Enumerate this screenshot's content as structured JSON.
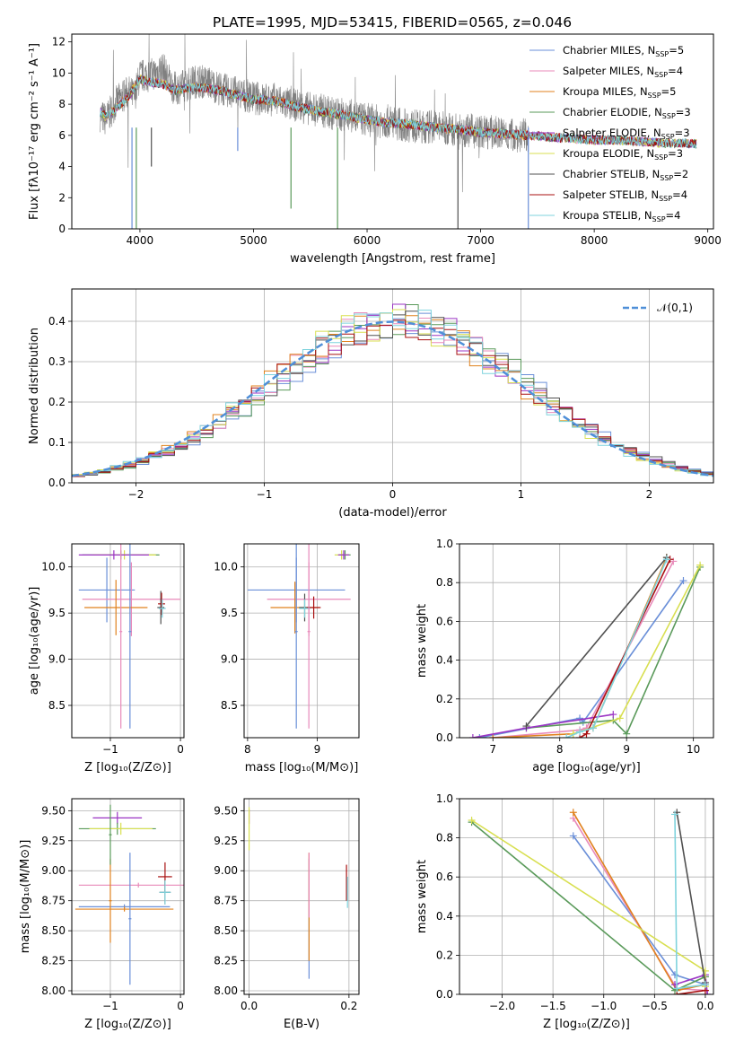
{
  "figure": {
    "title": "PLATE=1995, MJD=53415, FIBERID=0565, z=0.046"
  },
  "colors": [
    "#6a8fd8",
    "#e88aba",
    "#e0821e",
    "#5a9a5a",
    "#9b35c4",
    "#d8df50",
    "#505050",
    "#a81010",
    "#7fd3dd"
  ],
  "chart_data": [
    {
      "id": "spectrum",
      "type": "line",
      "xlabel": "wavelength [Angstrom, rest frame]",
      "ylabel": "Flux [fλ10⁻¹⁷ erg cm⁻² s⁻¹ A⁻¹]",
      "xlim": [
        3400,
        9050
      ],
      "ylim": [
        0,
        12.5
      ],
      "xticks": [
        4000,
        5000,
        6000,
        7000,
        8000,
        9000
      ],
      "yticks": [
        0,
        2,
        4,
        6,
        8,
        10,
        12
      ],
      "legend_position": "top-right",
      "observed_flux": {
        "color": "#808080",
        "x": [
          3650,
          3700,
          3800,
          3900,
          3950,
          4000,
          4100,
          4200,
          4300,
          4400,
          4500,
          4600,
          4700,
          4800,
          4900,
          5000,
          5100,
          5200,
          5300,
          5400,
          5500,
          5600,
          5700,
          5800,
          5900,
          6000,
          6100,
          6200,
          6300,
          6400,
          6500,
          6600,
          6700,
          6800,
          6900,
          7000,
          7100,
          7200,
          7300,
          7400
        ],
        "y": [
          7.3,
          7.0,
          8.2,
          8.8,
          8.5,
          9.8,
          9.9,
          10.3,
          9.0,
          9.2,
          9.5,
          9.4,
          9.0,
          8.8,
          8.6,
          8.4,
          8.3,
          8.3,
          8.0,
          7.9,
          7.7,
          7.6,
          7.4,
          7.3,
          7.2,
          7.0,
          6.9,
          6.9,
          6.7,
          6.6,
          6.5,
          6.6,
          6.4,
          6.4,
          6.3,
          6.2,
          6.2,
          6.1,
          6.0,
          6.0
        ]
      },
      "series": [
        {
          "name": "Chabrier MILES, N_SSP=5",
          "color": "#6a8fd8"
        },
        {
          "name": "Salpeter MILES, N_SSP=4",
          "color": "#e88aba"
        },
        {
          "name": "Kroupa MILES, N_SSP=5",
          "color": "#e0821e"
        },
        {
          "name": "Chabrier ELODIE, N_SSP=3",
          "color": "#5a9a5a"
        },
        {
          "name": "Salpeter ELODIE, N_SSP=3",
          "color": "#9b35c4"
        },
        {
          "name": "Kroupa ELODIE, N_SSP=3",
          "color": "#d8df50"
        },
        {
          "name": "Chabrier STELIB, N_SSP=2",
          "color": "#505050"
        },
        {
          "name": "Salpeter STELIB, N_SSP=4",
          "color": "#a81010"
        },
        {
          "name": "Kroupa STELIB, N_SSP=4",
          "color": "#7fd3dd"
        }
      ],
      "model_flux": {
        "x": [
          3650,
          3700,
          3800,
          3900,
          4000,
          4100,
          4200,
          4300,
          4400,
          4500,
          4600,
          4700,
          4800,
          4900,
          5000,
          5200,
          5400,
          5600,
          5800,
          6000,
          6200,
          6400,
          6600,
          6800,
          7000,
          7200,
          7400,
          7600,
          7800,
          8000,
          8200,
          8400,
          8600,
          8800,
          9000
        ],
        "y": [
          7.5,
          7.2,
          7.8,
          8.5,
          9.6,
          9.4,
          9.3,
          8.9,
          9.0,
          9.1,
          9.0,
          8.9,
          8.7,
          8.5,
          8.3,
          8.2,
          7.8,
          7.5,
          7.3,
          7.0,
          6.8,
          6.7,
          6.5,
          6.4,
          6.2,
          6.1,
          6.0,
          5.9,
          5.8,
          5.7,
          5.7,
          5.6,
          5.5,
          5.5,
          5.4
        ]
      }
    },
    {
      "id": "residuals",
      "type": "line",
      "xlabel": "(data-model)/error",
      "ylabel": "Normed distribution",
      "xlim": [
        -2.5,
        2.5
      ],
      "ylim": [
        0,
        0.48
      ],
      "xticks": [
        -2,
        -1,
        0,
        1,
        2
      ],
      "yticks": [
        0.0,
        0.1,
        0.2,
        0.3,
        0.4
      ],
      "reference_curve": {
        "name": "𝒩(0,1)",
        "mean": 0,
        "sigma": 1,
        "color": "#4f8fd8"
      },
      "histogram_bin_width": 0.1
    },
    {
      "id": "age_vs_Z",
      "type": "scatter",
      "xlabel": "Z [log₁₀(Z/Z⊙)]",
      "ylabel": "age  [log₁₀(age/yr)]",
      "xlim": [
        -1.55,
        0.05
      ],
      "ylim": [
        8.15,
        10.25
      ],
      "xticks": [
        -1,
        0
      ],
      "yticks": [
        8.5,
        9.0,
        9.5,
        10.0
      ],
      "points": [
        {
          "x": -0.85,
          "y": 10.13,
          "xerr": 0.55,
          "yerr": 0.05,
          "color": "#5a9a5a"
        },
        {
          "x": -0.8,
          "y": 10.13,
          "xerr": 0.45,
          "yerr": 0.05,
          "color": "#d8df50"
        },
        {
          "x": -0.95,
          "y": 10.13,
          "xerr": 0.5,
          "yerr": 0.05,
          "color": "#9b35c4"
        },
        {
          "x": -1.05,
          "y": 9.75,
          "xerr": 0.4,
          "yerr": 0.35,
          "color": "#6a8fd8"
        },
        {
          "x": -0.7,
          "y": 9.65,
          "xerr": 0.7,
          "yerr": 0.4,
          "color": "#e88aba"
        },
        {
          "x": -0.92,
          "y": 9.56,
          "xerr": 0.45,
          "yerr": 0.3,
          "color": "#e0821e"
        },
        {
          "x": -0.28,
          "y": 9.56,
          "xerr": 0.05,
          "yerr": 0.18,
          "color": "#505050"
        },
        {
          "x": -0.27,
          "y": 9.6,
          "xerr": 0.05,
          "yerr": 0.12,
          "color": "#a81010"
        },
        {
          "x": -0.26,
          "y": 9.55,
          "xerr": 0.05,
          "yerr": 0.1,
          "color": "#7fd3dd"
        },
        {
          "x": -0.72,
          "y": 9.3,
          "xerr": 0.02,
          "yerr": 1.05,
          "color": "#6a8fd8"
        },
        {
          "x": -0.85,
          "y": 9.3,
          "xerr": 0.02,
          "yerr": 1.05,
          "color": "#e88aba"
        }
      ]
    },
    {
      "id": "age_vs_mass",
      "type": "scatter",
      "xlabel": "mass [log₁₀(M/M⊙)]",
      "ylabel": "",
      "xlim": [
        7.95,
        9.6
      ],
      "ylim": [
        8.15,
        10.25
      ],
      "xticks": [
        8,
        9
      ],
      "yticks": [
        8.5,
        9.0,
        9.5,
        10.0
      ],
      "points": [
        {
          "x": 9.4,
          "y": 10.13,
          "xerr": 0.08,
          "yerr": 0.05,
          "color": "#5a9a5a"
        },
        {
          "x": 9.35,
          "y": 10.13,
          "xerr": 0.1,
          "yerr": 0.05,
          "color": "#d8df50"
        },
        {
          "x": 9.38,
          "y": 10.13,
          "xerr": 0.08,
          "yerr": 0.05,
          "color": "#9b35c4"
        },
        {
          "x": 8.7,
          "y": 9.75,
          "xerr": 0.7,
          "yerr": 0.35,
          "color": "#6a8fd8"
        },
        {
          "x": 8.88,
          "y": 9.65,
          "xerr": 0.6,
          "yerr": 0.4,
          "color": "#e88aba"
        },
        {
          "x": 8.68,
          "y": 9.56,
          "xerr": 0.35,
          "yerr": 0.28,
          "color": "#e0821e"
        },
        {
          "x": 8.82,
          "y": 9.56,
          "xerr": 0.08,
          "yerr": 0.15,
          "color": "#505050"
        },
        {
          "x": 8.95,
          "y": 9.56,
          "xerr": 0.1,
          "yerr": 0.12,
          "color": "#a81010"
        },
        {
          "x": 8.82,
          "y": 9.55,
          "xerr": 0.08,
          "yerr": 0.1,
          "color": "#7fd3dd"
        },
        {
          "x": 8.7,
          "y": 9.3,
          "xerr": 0.02,
          "yerr": 1.05,
          "color": "#6a8fd8"
        },
        {
          "x": 8.88,
          "y": 9.3,
          "xerr": 0.02,
          "yerr": 1.05,
          "color": "#e88aba"
        }
      ]
    },
    {
      "id": "weight_vs_age",
      "type": "line",
      "xlabel": "age  [log₁₀(age/yr)]",
      "ylabel": "mass weight",
      "xlim": [
        6.5,
        10.3
      ],
      "ylim": [
        0,
        1.0
      ],
      "xticks": [
        7,
        8,
        9,
        10
      ],
      "yticks": [
        0.0,
        0.2,
        0.4,
        0.6,
        0.8,
        1.0
      ],
      "series": [
        {
          "color": "#6a8fd8",
          "x": [
            6.8,
            8.3,
            8.35,
            9.85
          ],
          "y": [
            0.0,
            0.1,
            0.08,
            0.81
          ]
        },
        {
          "color": "#e88aba",
          "x": [
            7.0,
            8.3,
            8.4,
            9.7
          ],
          "y": [
            0.0,
            0.04,
            0.05,
            0.91
          ]
        },
        {
          "color": "#e0821e",
          "x": [
            7.0,
            8.2,
            8.5,
            9.6
          ],
          "y": [
            0.0,
            0.02,
            0.05,
            0.93
          ]
        },
        {
          "color": "#5a9a5a",
          "x": [
            7.5,
            8.8,
            9.0,
            10.1
          ],
          "y": [
            0.05,
            0.09,
            0.02,
            0.88
          ]
        },
        {
          "color": "#9b35c4",
          "x": [
            6.7,
            7.5,
            8.8
          ],
          "y": [
            0.0,
            0.05,
            0.12
          ]
        },
        {
          "color": "#d8df50",
          "x": [
            8.2,
            8.9,
            10.1
          ],
          "y": [
            0.02,
            0.1,
            0.89
          ]
        },
        {
          "color": "#505050",
          "x": [
            7.5,
            9.6
          ],
          "y": [
            0.06,
            0.93
          ]
        },
        {
          "color": "#a81010",
          "x": [
            8.3,
            8.4,
            9.65
          ],
          "y": [
            0.0,
            0.02,
            0.92
          ]
        },
        {
          "color": "#7fd3dd",
          "x": [
            8.1,
            8.3,
            8.5,
            9.6
          ],
          "y": [
            0.0,
            0.03,
            0.05,
            0.92
          ]
        }
      ]
    },
    {
      "id": "mass_vs_Z",
      "type": "scatter",
      "xlabel": "Z [log₁₀(Z/Z⊙)]",
      "ylabel": "mass [log₁₀(M/M⊙)]",
      "xlim": [
        -1.55,
        0.05
      ],
      "ylim": [
        7.97,
        9.6
      ],
      "xticks": [
        -1,
        0
      ],
      "yticks": [
        8.0,
        8.25,
        8.5,
        8.75,
        9.0,
        9.25,
        9.5
      ],
      "points": [
        {
          "x": -0.9,
          "y": 9.44,
          "xerr": 0.35,
          "yerr": 0.05,
          "color": "#9b35c4"
        },
        {
          "x": -0.9,
          "y": 9.35,
          "xerr": 0.55,
          "yerr": 0.05,
          "color": "#5a9a5a"
        },
        {
          "x": -0.85,
          "y": 9.35,
          "xerr": 0.45,
          "yerr": 0.05,
          "color": "#d8df50"
        },
        {
          "x": -0.6,
          "y": 8.88,
          "xerr": 0.85,
          "yerr": 0.02,
          "color": "#e88aba"
        },
        {
          "x": -0.8,
          "y": 8.7,
          "xerr": 0.65,
          "yerr": 0.02,
          "color": "#6a8fd8"
        },
        {
          "x": -0.8,
          "y": 8.68,
          "xerr": 0.7,
          "yerr": 0.02,
          "color": "#e0821e"
        },
        {
          "x": -0.22,
          "y": 8.95,
          "xerr": 0.1,
          "yerr": 0.12,
          "color": "#a81010"
        },
        {
          "x": -0.22,
          "y": 8.82,
          "xerr": 0.08,
          "yerr": 0.1,
          "color": "#505050"
        },
        {
          "x": -0.22,
          "y": 8.82,
          "xerr": 0.08,
          "yerr": 0.1,
          "color": "#7fd3dd"
        },
        {
          "x": -0.72,
          "y": 8.6,
          "xerr": 0.02,
          "yerr": 0.55,
          "color": "#6a8fd8"
        },
        {
          "x": -1.0,
          "y": 8.75,
          "xerr": 0.02,
          "yerr": 0.35,
          "color": "#e0821e"
        },
        {
          "x": -1.0,
          "y": 9.3,
          "xerr": 0.02,
          "yerr": 0.25,
          "color": "#5a9a5a"
        }
      ]
    },
    {
      "id": "mass_vs_ebv",
      "type": "scatter",
      "xlabel": "E(B-V)",
      "ylabel": "",
      "xlim": [
        -0.01,
        0.22
      ],
      "ylim": [
        7.97,
        9.6
      ],
      "xticks": [
        0.0,
        0.2
      ],
      "yticks": [
        8.0,
        8.25,
        8.5,
        8.75,
        9.0,
        9.25,
        9.5
      ],
      "points": [
        {
          "x": 0.0,
          "y": 9.45,
          "xerr": 0.0,
          "yerr": 0.06,
          "color": "#9b35c4"
        },
        {
          "x": 0.0,
          "y": 9.35,
          "xerr": 0.0,
          "yerr": 0.18,
          "color": "#d8df50"
        },
        {
          "x": 0.12,
          "y": 8.6,
          "xerr": 0.0,
          "yerr": 0.5,
          "color": "#6a8fd8"
        },
        {
          "x": 0.12,
          "y": 8.7,
          "xerr": 0.0,
          "yerr": 0.45,
          "color": "#e0821e"
        },
        {
          "x": 0.12,
          "y": 8.88,
          "xerr": 0.0,
          "yerr": 0.27,
          "color": "#e88aba"
        },
        {
          "x": 0.195,
          "y": 8.9,
          "xerr": 0.0,
          "yerr": 0.15,
          "color": "#a81010"
        },
        {
          "x": 0.197,
          "y": 8.82,
          "xerr": 0.0,
          "yerr": 0.13,
          "color": "#7fd3dd"
        }
      ]
    },
    {
      "id": "weight_vs_Z",
      "type": "line",
      "xlabel": "Z [log₁₀(Z/Z⊙)]",
      "ylabel": "mass weight",
      "xlim": [
        -2.42,
        0.08
      ],
      "ylim": [
        0,
        1.0
      ],
      "xticks": [
        -2.0,
        -1.5,
        -1.0,
        -0.5,
        0.0
      ],
      "yticks": [
        0.0,
        0.2,
        0.4,
        0.6,
        0.8,
        1.0
      ],
      "series": [
        {
          "color": "#6a8fd8",
          "x": [
            -1.3,
            -0.3,
            0.0
          ],
          "y": [
            0.81,
            0.1,
            0.05
          ]
        },
        {
          "color": "#e88aba",
          "x": [
            -1.3,
            -0.28,
            0.0
          ],
          "y": [
            0.9,
            0.03,
            0.02
          ]
        },
        {
          "color": "#e0821e",
          "x": [
            -1.3,
            -0.28,
            0.0
          ],
          "y": [
            0.93,
            0.02,
            0.05
          ]
        },
        {
          "color": "#5a9a5a",
          "x": [
            -2.3,
            -0.3,
            0.0
          ],
          "y": [
            0.88,
            0.02,
            0.09
          ]
        },
        {
          "color": "#9b35c4",
          "x": [
            -0.3,
            0.0,
            0.02
          ],
          "y": [
            0.05,
            0.1,
            0.0
          ]
        },
        {
          "color": "#d8df50",
          "x": [
            -2.3,
            0.0,
            0.0
          ],
          "y": [
            0.89,
            0.12,
            0.04
          ]
        },
        {
          "color": "#505050",
          "x": [
            -0.28,
            0.0
          ],
          "y": [
            0.93,
            0.06
          ]
        },
        {
          "color": "#a81010",
          "x": [
            -0.28,
            0.0
          ],
          "y": [
            0.0,
            0.02
          ]
        },
        {
          "color": "#7fd3dd",
          "x": [
            -0.3,
            -0.28,
            0.0
          ],
          "y": [
            0.92,
            0.03,
            0.05
          ]
        }
      ]
    }
  ]
}
